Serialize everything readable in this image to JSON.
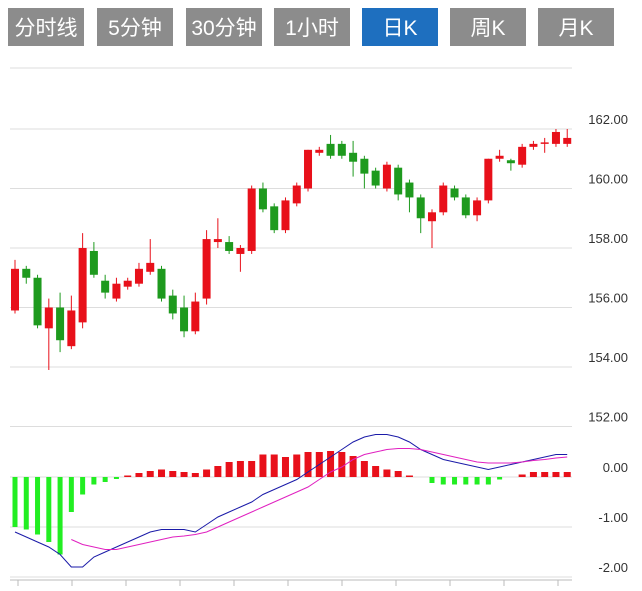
{
  "tabs": [
    "分时线",
    "5分钟",
    "30分钟",
    "1小时",
    "日K",
    "周K",
    "月K"
  ],
  "selected_tab": 4,
  "chart_data": [
    {
      "type": "candlestick",
      "up_color": "#e8101a",
      "down_color": "#1e9a1e",
      "open": [
        155.9,
        157.3,
        157.0,
        155.3,
        156.0,
        154.7,
        155.5,
        157.9,
        156.9,
        156.3,
        156.7,
        156.8,
        157.2,
        157.3,
        156.4,
        156.0,
        155.2,
        156.3,
        158.2,
        158.2,
        157.8,
        157.9,
        160.0,
        159.4,
        158.6,
        159.5,
        160.0,
        161.2,
        161.5,
        161.5,
        161.2,
        161.0,
        160.6,
        160.0,
        160.7,
        160.2,
        159.7,
        158.9,
        159.2,
        160.0,
        159.7,
        159.1,
        159.6,
        161.0,
        160.95,
        160.8,
        161.4,
        161.5,
        161.5,
        161.5
      ],
      "high": [
        157.6,
        157.4,
        157.1,
        156.3,
        156.5,
        156.4,
        158.5,
        158.2,
        157.1,
        157.0,
        157.0,
        157.5,
        158.3,
        157.4,
        156.6,
        156.4,
        156.5,
        158.6,
        159.0,
        158.4,
        158.1,
        160.1,
        160.2,
        159.5,
        159.7,
        160.2,
        161.3,
        161.4,
        161.8,
        161.6,
        161.6,
        161.1,
        160.7,
        160.9,
        160.8,
        160.3,
        159.8,
        159.3,
        160.2,
        160.1,
        159.8,
        159.7,
        161.0,
        161.3,
        161.0,
        161.5,
        161.6,
        161.7,
        162.0,
        162.0
      ],
      "low": [
        155.8,
        156.8,
        155.3,
        153.9,
        154.5,
        154.6,
        155.3,
        157.0,
        156.3,
        156.2,
        156.6,
        156.7,
        157.1,
        156.2,
        155.6,
        155.0,
        155.1,
        156.1,
        158.0,
        157.8,
        157.2,
        157.8,
        159.2,
        158.5,
        158.5,
        159.4,
        159.9,
        161.1,
        161.0,
        161.0,
        160.4,
        160.0,
        160.0,
        159.9,
        159.6,
        159.2,
        158.5,
        158.0,
        159.1,
        159.6,
        159.0,
        158.9,
        159.5,
        160.9,
        160.6,
        160.7,
        161.3,
        161.2,
        161.4,
        161.4
      ],
      "close": [
        157.3,
        157.0,
        155.4,
        156.0,
        154.9,
        155.9,
        158.0,
        157.1,
        156.5,
        156.8,
        156.9,
        157.3,
        157.5,
        156.3,
        155.8,
        155.2,
        156.2,
        158.3,
        158.3,
        157.9,
        158.0,
        160.0,
        159.3,
        158.6,
        159.6,
        160.1,
        161.3,
        161.3,
        161.1,
        161.1,
        160.9,
        160.5,
        160.1,
        160.8,
        159.8,
        159.7,
        159.0,
        159.2,
        160.1,
        159.7,
        159.1,
        159.6,
        161.0,
        161.1,
        160.85,
        161.4,
        161.5,
        161.55,
        161.9,
        161.7
      ],
      "ylim": [
        152,
        164
      ],
      "yticks": [
        {
          "value": 152,
          "label": "152.00"
        },
        {
          "value": 154,
          "label": "154.00"
        },
        {
          "value": 156,
          "label": "156.00"
        },
        {
          "value": 158,
          "label": "158.00"
        },
        {
          "value": 160,
          "label": "160.00"
        },
        {
          "value": 162,
          "label": "162.00"
        }
      ],
      "grid": true
    },
    {
      "type": "macd",
      "up_color": "#e8101a",
      "down_color": "#22ee22",
      "histogram": [
        -1.0,
        -1.05,
        -1.15,
        -1.3,
        -1.55,
        -0.7,
        -0.35,
        -0.15,
        -0.1,
        -0.04,
        0.03,
        0.08,
        0.12,
        0.15,
        0.12,
        0.1,
        0.08,
        0.15,
        0.22,
        0.3,
        0.32,
        0.32,
        0.45,
        0.45,
        0.4,
        0.45,
        0.5,
        0.5,
        0.52,
        0.5,
        0.42,
        0.32,
        0.22,
        0.15,
        0.12,
        0.03,
        0,
        -0.12,
        -0.15,
        -0.15,
        -0.15,
        -0.15,
        -0.15,
        -0.05,
        0,
        0.05,
        0.1,
        0.1,
        0.1,
        0.1
      ],
      "series": [
        {
          "color": "#1a1aa8",
          "values": [
            -1.1,
            -1.2,
            -1.3,
            -1.4,
            -1.55,
            -1.8,
            -1.8,
            -1.6,
            -1.5,
            -1.4,
            -1.3,
            -1.2,
            -1.1,
            -1.05,
            -1.05,
            -1.05,
            -1.1,
            -0.95,
            -0.8,
            -0.7,
            -0.6,
            -0.5,
            -0.35,
            -0.25,
            -0.15,
            -0.05,
            0.1,
            0.25,
            0.4,
            0.55,
            0.7,
            0.8,
            0.85,
            0.85,
            0.8,
            0.7,
            0.55,
            0.45,
            0.35,
            0.3,
            0.25,
            0.2,
            0.15,
            0.2,
            0.25,
            0.3,
            0.35,
            0.4,
            0.45,
            0.45
          ]
        },
        {
          "color": "#e020c0",
          "values": [
            null,
            null,
            null,
            null,
            null,
            -1.25,
            -1.35,
            -1.4,
            -1.45,
            -1.45,
            -1.4,
            -1.35,
            -1.3,
            -1.25,
            -1.2,
            -1.18,
            -1.15,
            -1.1,
            -1.0,
            -0.9,
            -0.8,
            -0.7,
            -0.6,
            -0.5,
            -0.4,
            -0.3,
            -0.2,
            -0.05,
            0.1,
            0.2,
            0.35,
            0.45,
            0.5,
            0.55,
            0.57,
            0.57,
            0.55,
            0.5,
            0.45,
            0.4,
            0.35,
            0.3,
            0.28,
            0.28,
            0.28,
            0.3,
            0.33,
            0.35,
            0.38,
            0.4
          ]
        }
      ],
      "ylim": [
        -2,
        1
      ],
      "yticks": [
        {
          "value": -2,
          "label": "-2.00"
        },
        {
          "value": -1,
          "label": "-1.00"
        },
        {
          "value": 0,
          "label": "0.00"
        }
      ],
      "grid": true
    }
  ]
}
